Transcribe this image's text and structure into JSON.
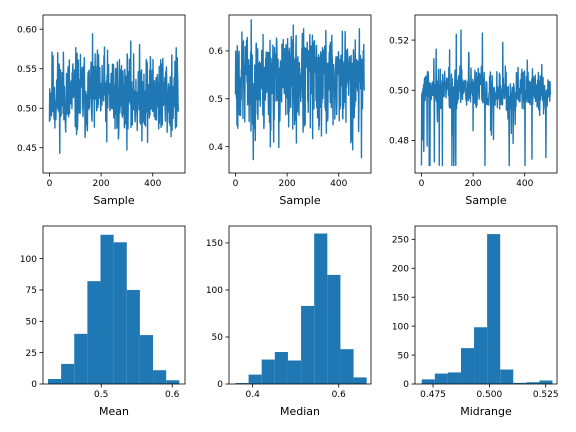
{
  "colors": {
    "series": "#1f77b4"
  },
  "chart_data": [
    {
      "type": "line",
      "title": "",
      "xlabel": "Sample",
      "ylabel": "",
      "xlim": [
        -25,
        525
      ],
      "ylim": [
        0.418,
        0.618
      ],
      "xticks": [
        0,
        200,
        400
      ],
      "yticks": [
        0.45,
        0.5,
        0.55,
        0.6
      ],
      "ytick_labels": [
        "0.45",
        "0.50",
        "0.55",
        "0.60"
      ],
      "generator": {
        "n": 500,
        "center": 0.517,
        "spread": 0.027,
        "min": 0.424,
        "max": 0.612,
        "seed": 11
      },
      "grid": false
    },
    {
      "type": "line",
      "title": "",
      "xlabel": "Sample",
      "ylabel": "",
      "xlim": [
        -25,
        525
      ],
      "ylim": [
        0.345,
        0.675
      ],
      "xticks": [
        0,
        200,
        400
      ],
      "yticks": [
        0.4,
        0.5,
        0.6
      ],
      "ytick_labels": [
        "0.4",
        "0.5",
        "0.6"
      ],
      "generator": {
        "n": 500,
        "center": 0.555,
        "spread": 0.05,
        "min": 0.36,
        "max": 0.665,
        "seed": 23,
        "skew": -1
      },
      "grid": false
    },
    {
      "type": "line",
      "title": "",
      "xlabel": "Sample",
      "ylabel": "",
      "xlim": [
        -25,
        525
      ],
      "ylim": [
        0.467,
        0.53
      ],
      "xticks": [
        0,
        200,
        400
      ],
      "yticks": [
        0.48,
        0.5,
        0.52
      ],
      "ytick_labels": [
        "0.48",
        "0.50",
        "0.52"
      ],
      "generator": {
        "n": 500,
        "center": 0.5,
        "spread": 0.004,
        "min": 0.47,
        "max": 0.528,
        "seed": 37,
        "spiky": true
      },
      "grid": false
    },
    {
      "type": "bar",
      "title": "",
      "xlabel": "Mean",
      "ylabel": "",
      "xlim": [
        0.418,
        0.618
      ],
      "ylim": [
        0,
        126
      ],
      "xticks": [
        0.5,
        0.6
      ],
      "xtick_labels": [
        "0.5",
        "0.6"
      ],
      "yticks": [
        0,
        25,
        50,
        75,
        100
      ],
      "bin_edges": [
        0.425,
        0.4435,
        0.462,
        0.4805,
        0.499,
        0.5175,
        0.536,
        0.5545,
        0.573,
        0.5915,
        0.61
      ],
      "values": [
        4,
        16,
        40,
        82,
        119,
        113,
        75,
        39,
        11,
        3
      ],
      "grid": false
    },
    {
      "type": "bar",
      "title": "",
      "xlabel": "Median",
      "ylabel": "",
      "xlim": [
        0.345,
        0.675
      ],
      "ylim": [
        0,
        168
      ],
      "xticks": [
        0.4,
        0.6
      ],
      "xtick_labels": [
        "0.4",
        "0.6"
      ],
      "yticks": [
        0,
        50,
        100,
        150
      ],
      "bin_edges": [
        0.36,
        0.3905,
        0.421,
        0.4515,
        0.482,
        0.5125,
        0.543,
        0.5735,
        0.604,
        0.6345,
        0.665
      ],
      "values": [
        1,
        10,
        26,
        34,
        25,
        83,
        160,
        116,
        37,
        7
      ],
      "grid": false
    },
    {
      "type": "bar",
      "title": "",
      "xlabel": "Midrange",
      "ylabel": "",
      "xlim": [
        0.467,
        0.53
      ],
      "ylim": [
        0,
        273
      ],
      "xticks": [
        0.475,
        0.5,
        0.525
      ],
      "xtick_labels": [
        "0.475",
        "0.500",
        "0.525"
      ],
      "yticks": [
        0,
        50,
        100,
        150,
        200,
        250
      ],
      "bin_edges": [
        0.47,
        0.4758,
        0.4816,
        0.4874,
        0.4932,
        0.499,
        0.5048,
        0.5106,
        0.5164,
        0.5222,
        0.528
      ],
      "values": [
        8,
        18,
        20,
        62,
        98,
        259,
        25,
        2,
        3,
        6
      ],
      "grid": false
    }
  ]
}
